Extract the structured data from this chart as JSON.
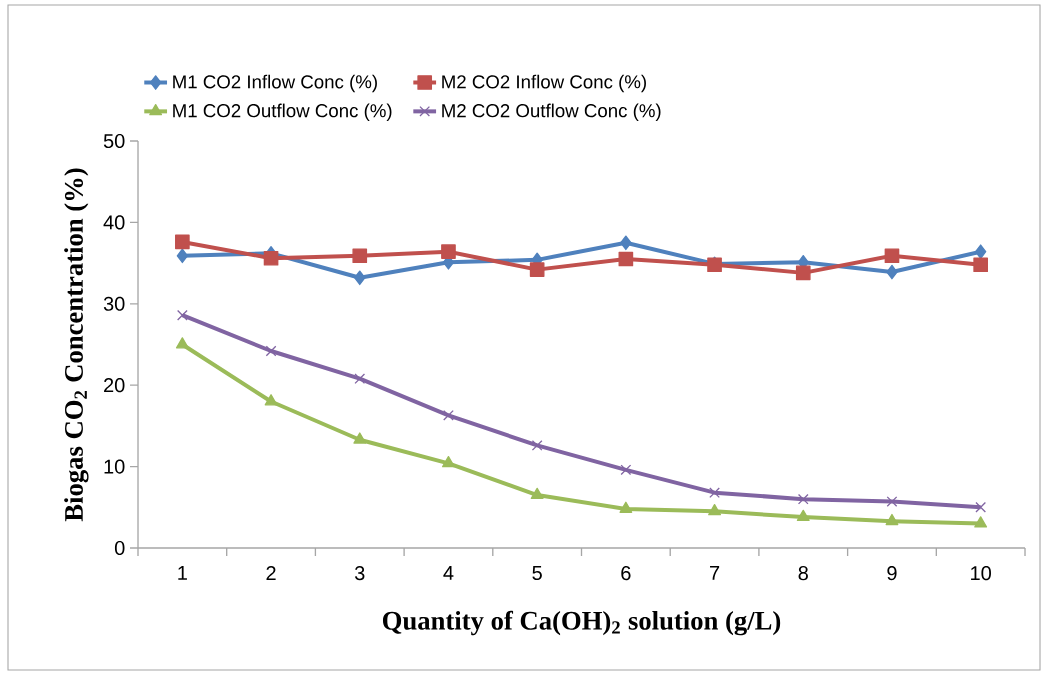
{
  "chart_data": {
    "type": "line",
    "xlabel": "Quantity of Ca(OH)$_{2}$ solution (g/L)",
    "ylabel": "Biogas CO$_{2}$ Concentration (%)",
    "categories": [
      "1",
      "2",
      "3",
      "4",
      "5",
      "6",
      "7",
      "8",
      "9",
      "10"
    ],
    "series": [
      {
        "name": "M1 CO2 Inflow Conc (%)",
        "color": "#4f81bd",
        "marker": "diamond",
        "values": [
          35.9,
          36.2,
          33.2,
          35.1,
          35.4,
          37.5,
          34.9,
          35.1,
          33.9,
          36.4
        ]
      },
      {
        "name": "M2 CO2 Inflow Conc (%)",
        "color": "#c0504d",
        "marker": "square",
        "values": [
          37.6,
          35.6,
          35.9,
          36.4,
          34.2,
          35.5,
          34.8,
          33.8,
          35.9,
          34.8
        ]
      },
      {
        "name": "M1 CO2 Outflow Conc (%)",
        "color": "#9bbb59",
        "marker": "triangle",
        "values": [
          25.0,
          18.0,
          13.3,
          10.4,
          6.5,
          4.8,
          4.5,
          3.8,
          3.3,
          3.0
        ]
      },
      {
        "name": "M2 CO2 Outflow Conc (%)",
        "color": "#8064a2",
        "marker": "cross",
        "values": [
          28.6,
          24.2,
          20.8,
          16.3,
          12.6,
          9.6,
          6.8,
          6.0,
          5.7,
          5.0
        ]
      }
    ],
    "ylim": [
      0,
      50
    ],
    "yticks": [
      0,
      10,
      20,
      30,
      40,
      50
    ],
    "grid": false,
    "legend": "top",
    "line_style": "solid"
  }
}
